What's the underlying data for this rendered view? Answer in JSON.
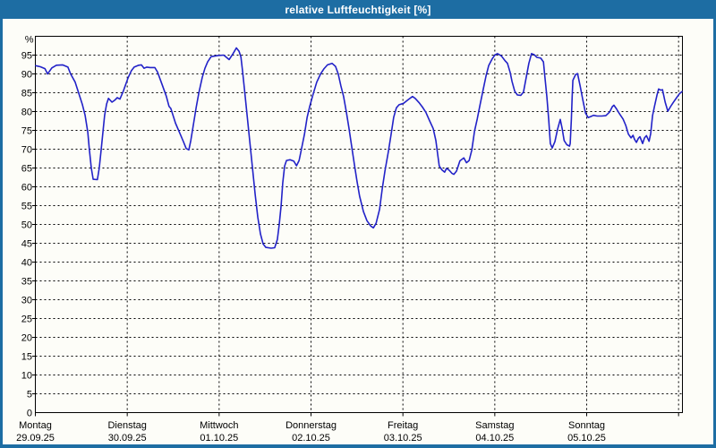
{
  "window": {
    "title": "relative Luftfeuchtigkeit [%]",
    "titlebar_color": "#1d6da3",
    "content_background": "#fdfdf8"
  },
  "chart_data": {
    "type": "line",
    "title": "relative Luftfeuchtigkeit [%]",
    "ylabel": "%",
    "ylim": [
      0,
      100
    ],
    "ytick_step": 5,
    "ytick_labels": [
      0,
      5,
      10,
      15,
      20,
      25,
      30,
      35,
      40,
      45,
      50,
      55,
      60,
      65,
      70,
      75,
      80,
      85,
      90,
      95
    ],
    "y_unit_label": "%",
    "x_unit": "hours_since_monday_00:00",
    "xlim": [
      0,
      169
    ],
    "grid": "dashed",
    "legend": "none",
    "line_color": "#2222c8",
    "line_width": 1.6,
    "days": [
      {
        "name": "Montag",
        "date": "29.09.25"
      },
      {
        "name": "Dienstag",
        "date": "30.09.25"
      },
      {
        "name": "Mittwoch",
        "date": "01.10.25"
      },
      {
        "name": "Donnerstag",
        "date": "02.10.25"
      },
      {
        "name": "Freitag",
        "date": "03.10.25"
      },
      {
        "name": "Samstag",
        "date": "04.10.25"
      },
      {
        "name": "Sonntag",
        "date": "05.10.25"
      }
    ],
    "series": [
      {
        "name": "relative Luftfeuchtigkeit",
        "points": [
          [
            0.1,
            92.2
          ],
          [
            1.3,
            91.9
          ],
          [
            2.5,
            91.4
          ],
          [
            3.2,
            90
          ],
          [
            4.3,
            91.6
          ],
          [
            5.5,
            92.3
          ],
          [
            7.1,
            92.4
          ],
          [
            8.5,
            91.8
          ],
          [
            9.2,
            90
          ],
          [
            10.4,
            87.8
          ],
          [
            11.3,
            85
          ],
          [
            12.3,
            81.8
          ],
          [
            13,
            79
          ],
          [
            13.7,
            74.5
          ],
          [
            14.1,
            70
          ],
          [
            14.6,
            65
          ],
          [
            15.1,
            62
          ],
          [
            16.2,
            61.9
          ],
          [
            16.7,
            65
          ],
          [
            17.2,
            70
          ],
          [
            17.7,
            75
          ],
          [
            18.1,
            79
          ],
          [
            18.6,
            82
          ],
          [
            19.1,
            83.5
          ],
          [
            20,
            82.5
          ],
          [
            20.7,
            83
          ],
          [
            21.4,
            83.7
          ],
          [
            22.1,
            83.3
          ],
          [
            23,
            85.5
          ],
          [
            24.2,
            88.9
          ],
          [
            25.1,
            90.9
          ],
          [
            25.8,
            91.8
          ],
          [
            27,
            92.3
          ],
          [
            27.7,
            92.4
          ],
          [
            28.4,
            91.5
          ],
          [
            29.1,
            91.8
          ],
          [
            30,
            91.7
          ],
          [
            31.2,
            91.7
          ],
          [
            31.9,
            90.5
          ],
          [
            33.1,
            87.2
          ],
          [
            34.2,
            84.1
          ],
          [
            34.9,
            81.4
          ],
          [
            35.4,
            80.8
          ],
          [
            36.6,
            76.9
          ],
          [
            37.8,
            74.1
          ],
          [
            38.7,
            71.9
          ],
          [
            39.4,
            70.2
          ],
          [
            40.1,
            69.8
          ],
          [
            40.6,
            72.3
          ],
          [
            41.3,
            76.7
          ],
          [
            42,
            81.1
          ],
          [
            42.7,
            85
          ],
          [
            43.6,
            89.1
          ],
          [
            44.3,
            91.5
          ],
          [
            45,
            93.2
          ],
          [
            45.9,
            94.6
          ],
          [
            47.8,
            94.9
          ],
          [
            49.2,
            95
          ],
          [
            49.9,
            94.4
          ],
          [
            50.6,
            93.8
          ],
          [
            51.6,
            95.3
          ],
          [
            52.5,
            96.9
          ],
          [
            53.2,
            96
          ],
          [
            53.7,
            94.5
          ],
          [
            54.1,
            91
          ],
          [
            54.6,
            86
          ],
          [
            55.3,
            79
          ],
          [
            56,
            72
          ],
          [
            56.7,
            65
          ],
          [
            57.4,
            58
          ],
          [
            58.1,
            52
          ],
          [
            58.8,
            47.5
          ],
          [
            59.5,
            44.8
          ],
          [
            60.2,
            43.9
          ],
          [
            61.6,
            43.7
          ],
          [
            62.5,
            43.8
          ],
          [
            63.2,
            46
          ],
          [
            63.7,
            50
          ],
          [
            64.2,
            55
          ],
          [
            64.6,
            61
          ],
          [
            65.1,
            65.5
          ],
          [
            65.6,
            67
          ],
          [
            66.5,
            67.2
          ],
          [
            67.5,
            66.8
          ],
          [
            68.2,
            65.6
          ],
          [
            68.9,
            67
          ],
          [
            69.5,
            70
          ],
          [
            70.3,
            74
          ],
          [
            71,
            78.5
          ],
          [
            71.7,
            81.5
          ],
          [
            72.6,
            84.8
          ],
          [
            73.5,
            87.8
          ],
          [
            74.5,
            90
          ],
          [
            75.4,
            91.4
          ],
          [
            76.3,
            92.4
          ],
          [
            77.5,
            92.8
          ],
          [
            78.4,
            92
          ],
          [
            79.1,
            90
          ],
          [
            79.8,
            86.8
          ],
          [
            80.5,
            84
          ],
          [
            81.2,
            80
          ],
          [
            81.9,
            75.6
          ],
          [
            82.6,
            70.8
          ],
          [
            83.3,
            66.2
          ],
          [
            84,
            61.6
          ],
          [
            84.7,
            57.5
          ],
          [
            85.7,
            53.4
          ],
          [
            86.6,
            51
          ],
          [
            87.6,
            49.6
          ],
          [
            88.3,
            49.1
          ],
          [
            89,
            50.3
          ],
          [
            89.9,
            54
          ],
          [
            90.6,
            59.5
          ],
          [
            91.3,
            64.2
          ],
          [
            92.2,
            69.3
          ],
          [
            92.9,
            73.8
          ],
          [
            93.6,
            78.5
          ],
          [
            94.3,
            81
          ],
          [
            95,
            81.8
          ],
          [
            96.2,
            82.2
          ],
          [
            97.4,
            83.2
          ],
          [
            98.5,
            84
          ],
          [
            99.2,
            83.5
          ],
          [
            100.2,
            82.4
          ],
          [
            101.1,
            81.2
          ],
          [
            102,
            79.8
          ],
          [
            103,
            77.5
          ],
          [
            103.9,
            75.5
          ],
          [
            104.6,
            72.3
          ],
          [
            105.1,
            68.5
          ],
          [
            105.5,
            65.5
          ],
          [
            106.2,
            64.5
          ],
          [
            106.9,
            63.9
          ],
          [
            107.4,
            64.9
          ],
          [
            108.1,
            64.4
          ],
          [
            108.8,
            63.6
          ],
          [
            109.3,
            63.3
          ],
          [
            110,
            64.2
          ],
          [
            110.9,
            66.9
          ],
          [
            111.9,
            67.7
          ],
          [
            112.6,
            66.4
          ],
          [
            113.3,
            67
          ],
          [
            114,
            69.8
          ],
          [
            114.7,
            74.8
          ],
          [
            115.4,
            78
          ],
          [
            116.1,
            81.6
          ],
          [
            117,
            86
          ],
          [
            117.7,
            89.4
          ],
          [
            118.4,
            92.2
          ],
          [
            119.3,
            94
          ],
          [
            120,
            95
          ],
          [
            120.7,
            95.4
          ],
          [
            121.7,
            94.8
          ],
          [
            122.6,
            93.6
          ],
          [
            123.3,
            92.8
          ],
          [
            124,
            90.4
          ],
          [
            124.5,
            88
          ],
          [
            125.2,
            85.4
          ],
          [
            125.9,
            84.4
          ],
          [
            126.8,
            84.3
          ],
          [
            127.5,
            85.2
          ],
          [
            128.2,
            89
          ],
          [
            128.9,
            92.8
          ],
          [
            129.6,
            95.4
          ],
          [
            130.3,
            95.1
          ],
          [
            131,
            94.4
          ],
          [
            132,
            94.2
          ],
          [
            132.7,
            93.2
          ],
          [
            133.1,
            89
          ],
          [
            133.6,
            84
          ],
          [
            134.1,
            77.5
          ],
          [
            134.5,
            71.5
          ],
          [
            135,
            70.3
          ],
          [
            135.7,
            72
          ],
          [
            136.4,
            75.3
          ],
          [
            137.1,
            77.9
          ],
          [
            137.6,
            75.5
          ],
          [
            138.1,
            72.3
          ],
          [
            138.8,
            71.2
          ],
          [
            139.5,
            70.8
          ],
          [
            139.7,
            71.5
          ],
          [
            140,
            78
          ],
          [
            140.2,
            84
          ],
          [
            140.4,
            88.3
          ],
          [
            141.1,
            89.8
          ],
          [
            141.6,
            90.1
          ],
          [
            142.3,
            86.8
          ],
          [
            143,
            83.1
          ],
          [
            143.7,
            79.6
          ],
          [
            144.4,
            78.4
          ],
          [
            145.1,
            78.7
          ],
          [
            145.8,
            79
          ],
          [
            146.7,
            78.8
          ],
          [
            147.9,
            78.8
          ],
          [
            149,
            78.9
          ],
          [
            150,
            79.9
          ],
          [
            150.7,
            81.3
          ],
          [
            151.1,
            81.7
          ],
          [
            151.8,
            80.7
          ],
          [
            152.5,
            79.5
          ],
          [
            153.5,
            78
          ],
          [
            154.2,
            76.3
          ],
          [
            154.9,
            74
          ],
          [
            155.6,
            73
          ],
          [
            156.1,
            73.7
          ],
          [
            156.5,
            72.6
          ],
          [
            157,
            71.8
          ],
          [
            157.5,
            72.9
          ],
          [
            157.9,
            73.3
          ],
          [
            158.6,
            71.5
          ],
          [
            159.1,
            73
          ],
          [
            159.6,
            73.6
          ],
          [
            160.3,
            72.1
          ],
          [
            160.7,
            74.1
          ],
          [
            161.2,
            78.9
          ],
          [
            161.7,
            81.3
          ],
          [
            162.4,
            84.5
          ],
          [
            162.8,
            86
          ],
          [
            163.3,
            85.7
          ],
          [
            163.8,
            85.8
          ],
          [
            164.5,
            82.5
          ],
          [
            165.2,
            80.1
          ],
          [
            165.9,
            81.3
          ],
          [
            166.6,
            82.4
          ],
          [
            167.5,
            83.7
          ],
          [
            168.2,
            84.7
          ],
          [
            168.9,
            85.3
          ]
        ]
      }
    ]
  }
}
